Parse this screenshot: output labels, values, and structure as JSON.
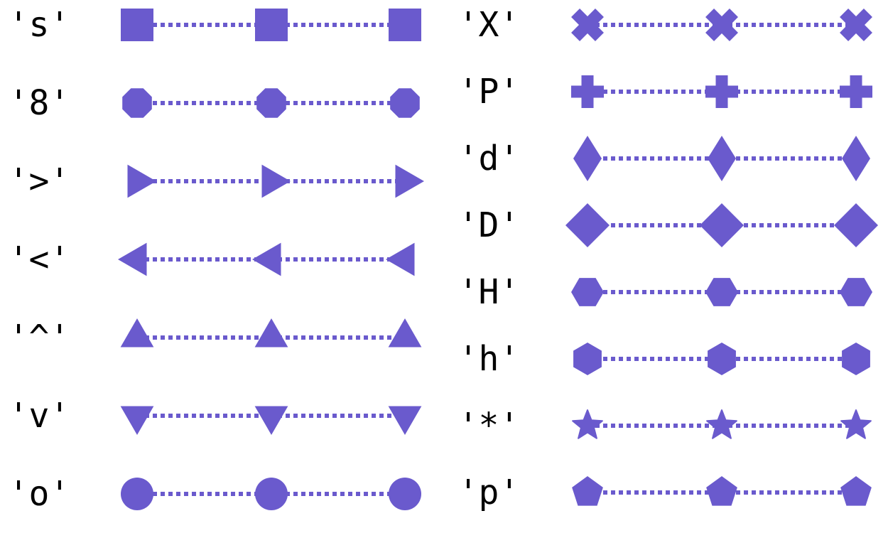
{
  "chart_data": {
    "type": "scatter",
    "title": "",
    "xlabel": "",
    "ylabel": "",
    "grid": false,
    "color": "#6a5acd",
    "line_style": "dotted",
    "x": [
      0,
      1,
      2
    ],
    "panels": [
      {
        "name": "left",
        "series": [
          {
            "label": "'s'",
            "marker": "square"
          },
          {
            "label": "'8'",
            "marker": "octagon"
          },
          {
            "label": "'>'",
            "marker": "triangle-right"
          },
          {
            "label": "'<'",
            "marker": "triangle-left"
          },
          {
            "label": "'^'",
            "marker": "triangle-up"
          },
          {
            "label": "'v'",
            "marker": "triangle-down"
          },
          {
            "label": "'o'",
            "marker": "circle"
          }
        ]
      },
      {
        "name": "right",
        "series": [
          {
            "label": "'X'",
            "marker": "x-filled"
          },
          {
            "label": "'P'",
            "marker": "plus-filled"
          },
          {
            "label": "'d'",
            "marker": "thin-diamond"
          },
          {
            "label": "'D'",
            "marker": "diamond"
          },
          {
            "label": "'H'",
            "marker": "hexagon-flat"
          },
          {
            "label": "'h'",
            "marker": "hexagon-pointy"
          },
          {
            "label": "'*'",
            "marker": "star"
          },
          {
            "label": "'p'",
            "marker": "pentagon"
          }
        ]
      }
    ]
  }
}
